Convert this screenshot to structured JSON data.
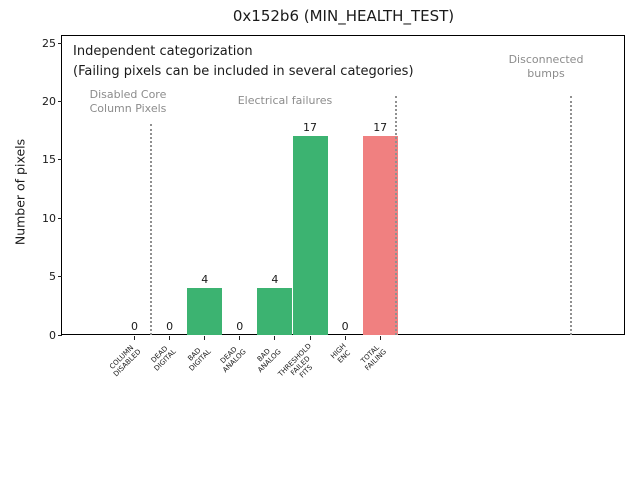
{
  "chart_data": {
    "type": "bar",
    "title": "0x152b6 (MIN_HEALTH_TEST)",
    "ylabel": "Number of pixels",
    "xlabel": "",
    "categories": [
      "COLUMN\nDISABLED",
      "DEAD\nDIGITAL",
      "BAD\nDIGITAL",
      "DEAD\nANALOG",
      "BAD\nANALOG",
      "THRESHOLD\nFAILED\nFITS",
      "HIGH\nENC",
      "TOTAL\nFAILING"
    ],
    "values": [
      0,
      0,
      4,
      0,
      4,
      17,
      0,
      17
    ],
    "value_labels": [
      "0",
      "0",
      "4",
      "0",
      "4",
      "17",
      "0",
      "17"
    ],
    "bar_colors": [
      "#3cb371",
      "#3cb371",
      "#3cb371",
      "#3cb371",
      "#3cb371",
      "#3cb371",
      "#3cb371",
      "#f08080"
    ],
    "yticks": [
      0,
      5,
      10,
      15,
      20,
      25
    ],
    "ylim": [
      0,
      25.6
    ],
    "xlim": [
      -2.07,
      13.97
    ],
    "grid": false,
    "legend": null,
    "annotations": [
      {
        "id": "note-independent",
        "text": "Independent categorization",
        "color": "#1a1a1a"
      },
      {
        "id": "note-failing",
        "text": "(Failing pixels can be included in several categories)",
        "color": "#1a1a1a"
      },
      {
        "id": "section-label-disabled-core",
        "text": "Disabled Core\nColumn Pixels",
        "color": "#8c8c8c"
      },
      {
        "id": "section-label-electrical",
        "text": "Electrical failures",
        "color": "#8c8c8c"
      },
      {
        "id": "section-label-disconnected",
        "text": "Disconnected\nbumps",
        "color": "#8c8c8c"
      }
    ],
    "separators": [
      {
        "style": "dotted",
        "color": "#909090",
        "data_x": 0.47,
        "top_value": 18.1
      },
      {
        "style": "dotted",
        "color": "#909090",
        "data_x": 7.46,
        "top_value": 20.5
      },
      {
        "style": "dotted",
        "color": "#909090",
        "data_x": 12.45,
        "top_value": 20.5
      }
    ],
    "colors": {
      "bar_green": "#3cb371",
      "bar_red": "#f08080",
      "axis": "#000000",
      "muted_text": "#8c8c8c"
    }
  }
}
